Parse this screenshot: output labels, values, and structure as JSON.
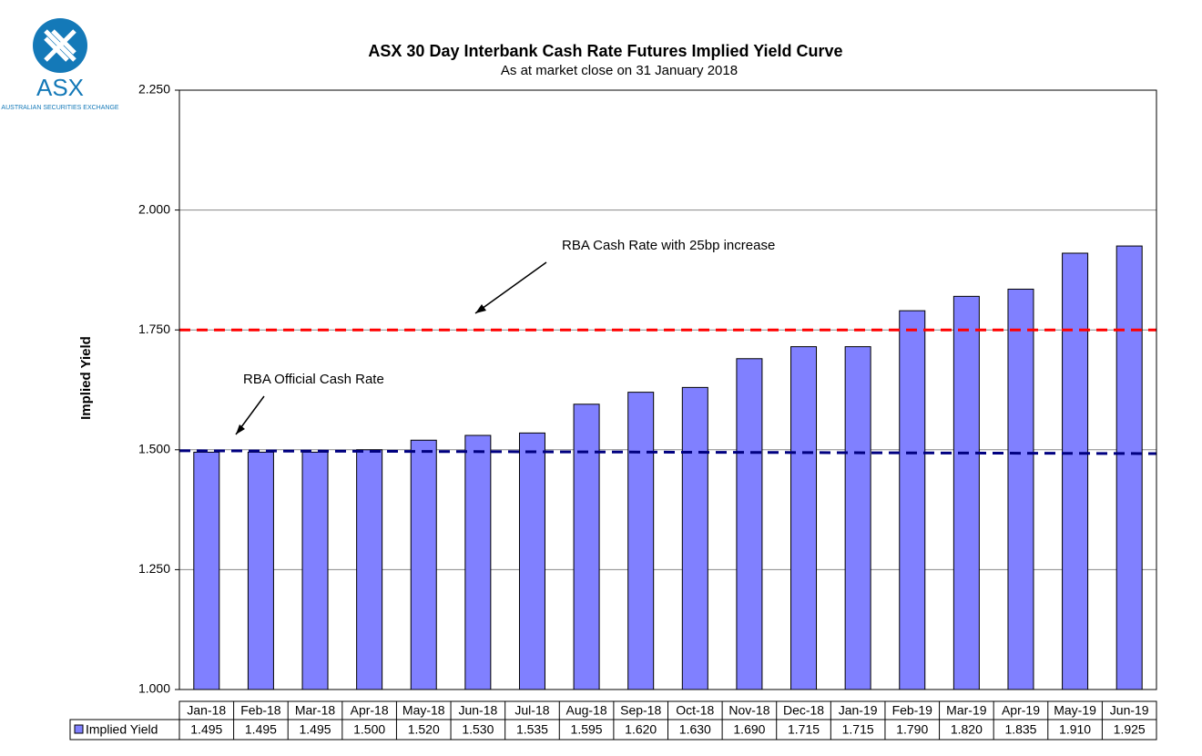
{
  "logo": {
    "name": "ASX",
    "subtitle": "AUSTRALIAN SECURITIES EXCHANGE"
  },
  "chart_data": {
    "type": "bar",
    "title": "ASX 30 Day Interbank Cash Rate Futures Implied Yield Curve",
    "subtitle": "As at market close on 31 January 2018",
    "y_label": "Implied Yield",
    "categories": [
      "Jan-18",
      "Feb-18",
      "Mar-18",
      "Apr-18",
      "May-18",
      "Jun-18",
      "Jul-18",
      "Aug-18",
      "Sep-18",
      "Oct-18",
      "Nov-18",
      "Dec-18",
      "Jan-19",
      "Feb-19",
      "Mar-19",
      "Apr-19",
      "May-19",
      "Jun-19"
    ],
    "series": [
      {
        "name": "Implied Yield",
        "color": "#8080ff",
        "values": [
          1.495,
          1.495,
          1.495,
          1.5,
          1.52,
          1.53,
          1.535,
          1.595,
          1.62,
          1.63,
          1.69,
          1.715,
          1.715,
          1.79,
          1.82,
          1.835,
          1.91,
          1.925
        ],
        "value_labels": [
          "1.495",
          "1.495",
          "1.495",
          "1.500",
          "1.520",
          "1.530",
          "1.535",
          "1.595",
          "1.620",
          "1.630",
          "1.690",
          "1.715",
          "1.715",
          "1.790",
          "1.820",
          "1.835",
          "1.910",
          "1.925"
        ]
      }
    ],
    "ylim": [
      1,
      2.25
    ],
    "yticks": [
      {
        "value": 1,
        "label": "1.000"
      },
      {
        "value": 1.25,
        "label": "1.250"
      },
      {
        "value": 1.5,
        "label": "1.500"
      },
      {
        "value": 1.75,
        "label": "1.750"
      },
      {
        "value": 2,
        "label": "2.000"
      },
      {
        "value": 2.25,
        "label": "2.250"
      }
    ],
    "grid": true,
    "reference_lines": [
      {
        "values": [
          1.75,
          1.75
        ],
        "color": "#ff0000"
      },
      {
        "values": [
          1.498,
          1.492
        ],
        "color": "#000080"
      }
    ],
    "annotations": [
      "RBA Cash Rate with 25bp increase",
      "RBA Official Cash Rate"
    ]
  }
}
